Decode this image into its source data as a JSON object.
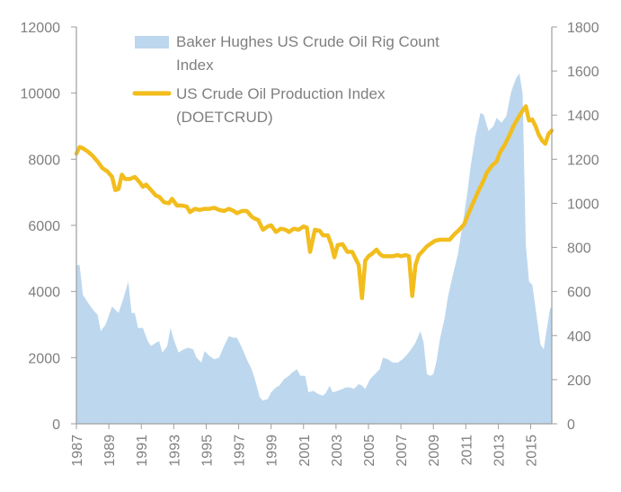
{
  "chart_data": {
    "type": "area+line",
    "title": "",
    "legend_position": "top-center",
    "colors": {
      "rig_area": "#bdd7ee",
      "production_line": "#f2bd1d",
      "axis": "#9e9e9e",
      "text": "#7f7f7f"
    },
    "left_axis": {
      "ylim": [
        0,
        12000
      ],
      "ticks": [
        "0",
        "2000",
        "4000",
        "6000",
        "8000",
        "10000",
        "12000"
      ]
    },
    "right_axis": {
      "ylim": [
        0,
        1800
      ],
      "ticks": [
        "0",
        "200",
        "400",
        "600",
        "800",
        "1000",
        "1200",
        "1400",
        "1600",
        "1800"
      ]
    },
    "x_axis": {
      "xlim": [
        1987,
        2016.3
      ],
      "ticks": [
        "1987",
        "1989",
        "1991",
        "1993",
        "1995",
        "1997",
        "1999",
        "2001",
        "2003",
        "2005",
        "2007",
        "2009",
        "2011",
        "2013",
        "2015"
      ]
    },
    "series": [
      {
        "name": "Baker Hughes US Crude Oil Rig Count Index",
        "legend_line1": "Baker Hughes US Crude Oil Rig Count",
        "legend_line2": "Index",
        "axis": "left",
        "type": "area",
        "points": [
          [
            1987.0,
            4800
          ],
          [
            1987.2,
            4800
          ],
          [
            1987.4,
            3900
          ],
          [
            1987.8,
            3600
          ],
          [
            1988.1,
            3400
          ],
          [
            1988.3,
            3300
          ],
          [
            1988.5,
            2800
          ],
          [
            1988.8,
            3000
          ],
          [
            1989.2,
            3550
          ],
          [
            1989.6,
            3350
          ],
          [
            1989.9,
            3800
          ],
          [
            1990.2,
            4300
          ],
          [
            1990.4,
            3350
          ],
          [
            1990.6,
            3350
          ],
          [
            1990.8,
            2900
          ],
          [
            1991.1,
            2900
          ],
          [
            1991.4,
            2500
          ],
          [
            1991.6,
            2350
          ],
          [
            1991.9,
            2450
          ],
          [
            1992.1,
            2500
          ],
          [
            1992.3,
            2150
          ],
          [
            1992.6,
            2350
          ],
          [
            1992.8,
            2900
          ],
          [
            1993.0,
            2550
          ],
          [
            1993.3,
            2150
          ],
          [
            1993.6,
            2250
          ],
          [
            1993.9,
            2300
          ],
          [
            1994.2,
            2250
          ],
          [
            1994.4,
            2000
          ],
          [
            1994.7,
            1850
          ],
          [
            1994.9,
            2200
          ],
          [
            1995.2,
            2050
          ],
          [
            1995.5,
            1950
          ],
          [
            1995.8,
            2000
          ],
          [
            1996.1,
            2350
          ],
          [
            1996.4,
            2650
          ],
          [
            1996.7,
            2600
          ],
          [
            1996.9,
            2600
          ],
          [
            1997.2,
            2300
          ],
          [
            1997.5,
            1950
          ],
          [
            1997.8,
            1650
          ],
          [
            1998.0,
            1350
          ],
          [
            1998.3,
            800
          ],
          [
            1998.5,
            700
          ],
          [
            1998.8,
            750
          ],
          [
            1999.0,
            950
          ],
          [
            1999.3,
            1100
          ],
          [
            1999.5,
            1150
          ],
          [
            1999.8,
            1350
          ],
          [
            2000.1,
            1450
          ],
          [
            2000.3,
            1550
          ],
          [
            2000.6,
            1650
          ],
          [
            2000.8,
            1450
          ],
          [
            2001.1,
            1450
          ],
          [
            2001.3,
            950
          ],
          [
            2001.6,
            1000
          ],
          [
            2001.9,
            900
          ],
          [
            2002.2,
            850
          ],
          [
            2002.4,
            950
          ],
          [
            2002.6,
            1150
          ],
          [
            2002.8,
            950
          ],
          [
            2003.1,
            1000
          ],
          [
            2003.4,
            1050
          ],
          [
            2003.6,
            1100
          ],
          [
            2003.9,
            1100
          ],
          [
            2004.1,
            1050
          ],
          [
            2004.4,
            1200
          ],
          [
            2004.6,
            1150
          ],
          [
            2004.8,
            1050
          ],
          [
            2005.1,
            1350
          ],
          [
            2005.4,
            1500
          ],
          [
            2005.7,
            1650
          ],
          [
            2005.9,
            2000
          ],
          [
            2006.2,
            1950
          ],
          [
            2006.5,
            1850
          ],
          [
            2006.8,
            1850
          ],
          [
            2007.1,
            1950
          ],
          [
            2007.4,
            2100
          ],
          [
            2007.7,
            2300
          ],
          [
            2007.9,
            2450
          ],
          [
            2008.2,
            2800
          ],
          [
            2008.4,
            2450
          ],
          [
            2008.6,
            1500
          ],
          [
            2008.8,
            1450
          ],
          [
            2009.0,
            1500
          ],
          [
            2009.2,
            1900
          ],
          [
            2009.4,
            2550
          ],
          [
            2009.7,
            3200
          ],
          [
            2009.9,
            3850
          ],
          [
            2010.2,
            4500
          ],
          [
            2010.5,
            5100
          ],
          [
            2010.8,
            6000
          ],
          [
            2011.1,
            7000
          ],
          [
            2011.3,
            7800
          ],
          [
            2011.6,
            8700
          ],
          [
            2011.9,
            9400
          ],
          [
            2012.1,
            9350
          ],
          [
            2012.4,
            8850
          ],
          [
            2012.7,
            9000
          ],
          [
            2012.9,
            9250
          ],
          [
            2013.2,
            9100
          ],
          [
            2013.5,
            9300
          ],
          [
            2013.8,
            10050
          ],
          [
            2014.1,
            10450
          ],
          [
            2014.3,
            10600
          ],
          [
            2014.5,
            10000
          ],
          [
            2014.7,
            5400
          ],
          [
            2014.9,
            4300
          ],
          [
            2015.1,
            4200
          ],
          [
            2015.3,
            3500
          ],
          [
            2015.6,
            2400
          ],
          [
            2015.8,
            2250
          ],
          [
            2016.0,
            2900
          ],
          [
            2016.2,
            3500
          ],
          [
            2016.3,
            3500
          ]
        ]
      },
      {
        "name": "US Crude Oil Production Index (DOETCRUD)",
        "legend_line1": "US Crude Oil Production Index",
        "legend_line2": "(DOETCRUD)",
        "axis": "right",
        "type": "line",
        "points": [
          [
            1987.0,
            1225
          ],
          [
            1987.2,
            1255
          ],
          [
            1987.4,
            1250
          ],
          [
            1987.7,
            1235
          ],
          [
            1988.0,
            1215
          ],
          [
            1988.3,
            1190
          ],
          [
            1988.6,
            1160
          ],
          [
            1988.9,
            1145
          ],
          [
            1989.2,
            1120
          ],
          [
            1989.4,
            1060
          ],
          [
            1989.6,
            1065
          ],
          [
            1989.8,
            1130
          ],
          [
            1990.0,
            1110
          ],
          [
            1990.3,
            1110
          ],
          [
            1990.6,
            1120
          ],
          [
            1990.9,
            1095
          ],
          [
            1991.1,
            1075
          ],
          [
            1991.3,
            1085
          ],
          [
            1991.6,
            1060
          ],
          [
            1991.9,
            1035
          ],
          [
            1992.1,
            1030
          ],
          [
            1992.4,
            1005
          ],
          [
            1992.7,
            1000
          ],
          [
            1992.9,
            1020
          ],
          [
            1993.2,
            990
          ],
          [
            1993.5,
            990
          ],
          [
            1993.8,
            985
          ],
          [
            1994.0,
            960
          ],
          [
            1994.3,
            975
          ],
          [
            1994.6,
            970
          ],
          [
            1994.9,
            975
          ],
          [
            1995.2,
            975
          ],
          [
            1995.5,
            980
          ],
          [
            1995.8,
            970
          ],
          [
            1996.1,
            965
          ],
          [
            1996.4,
            975
          ],
          [
            1996.7,
            965
          ],
          [
            1996.9,
            955
          ],
          [
            1997.2,
            965
          ],
          [
            1997.5,
            965
          ],
          [
            1997.8,
            940
          ],
          [
            1998.0,
            930
          ],
          [
            1998.2,
            925
          ],
          [
            1998.5,
            880
          ],
          [
            1998.8,
            895
          ],
          [
            1999.0,
            900
          ],
          [
            1999.3,
            870
          ],
          [
            1999.6,
            885
          ],
          [
            1999.9,
            880
          ],
          [
            2000.1,
            870
          ],
          [
            2000.4,
            885
          ],
          [
            2000.7,
            880
          ],
          [
            2001.0,
            895
          ],
          [
            2001.2,
            890
          ],
          [
            2001.4,
            780
          ],
          [
            2001.7,
            880
          ],
          [
            2002.0,
            875
          ],
          [
            2002.2,
            855
          ],
          [
            2002.5,
            855
          ],
          [
            2002.7,
            815
          ],
          [
            2002.9,
            755
          ],
          [
            2003.1,
            810
          ],
          [
            2003.4,
            815
          ],
          [
            2003.7,
            780
          ],
          [
            2004.0,
            780
          ],
          [
            2004.2,
            750
          ],
          [
            2004.4,
            720
          ],
          [
            2004.6,
            570
          ],
          [
            2004.8,
            740
          ],
          [
            2005.0,
            760
          ],
          [
            2005.2,
            770
          ],
          [
            2005.5,
            790
          ],
          [
            2005.7,
            770
          ],
          [
            2005.9,
            760
          ],
          [
            2006.2,
            760
          ],
          [
            2006.5,
            760
          ],
          [
            2006.8,
            765
          ],
          [
            2007.0,
            760
          ],
          [
            2007.3,
            765
          ],
          [
            2007.5,
            760
          ],
          [
            2007.7,
            580
          ],
          [
            2007.9,
            720
          ],
          [
            2008.1,
            765
          ],
          [
            2008.3,
            780
          ],
          [
            2008.6,
            805
          ],
          [
            2008.9,
            820
          ],
          [
            2009.1,
            830
          ],
          [
            2009.4,
            835
          ],
          [
            2009.7,
            835
          ],
          [
            2010.0,
            835
          ],
          [
            2010.3,
            860
          ],
          [
            2010.6,
            880
          ],
          [
            2010.9,
            905
          ],
          [
            2011.2,
            960
          ],
          [
            2011.5,
            1010
          ],
          [
            2011.8,
            1060
          ],
          [
            2012.1,
            1105
          ],
          [
            2012.3,
            1140
          ],
          [
            2012.6,
            1170
          ],
          [
            2012.9,
            1190
          ],
          [
            2013.1,
            1230
          ],
          [
            2013.4,
            1265
          ],
          [
            2013.7,
            1310
          ],
          [
            2013.9,
            1345
          ],
          [
            2014.2,
            1385
          ],
          [
            2014.5,
            1420
          ],
          [
            2014.7,
            1440
          ],
          [
            2014.9,
            1375
          ],
          [
            2015.1,
            1380
          ],
          [
            2015.3,
            1350
          ],
          [
            2015.5,
            1310
          ],
          [
            2015.7,
            1285
          ],
          [
            2015.9,
            1270
          ],
          [
            2016.1,
            1315
          ],
          [
            2016.3,
            1330
          ]
        ]
      }
    ]
  }
}
